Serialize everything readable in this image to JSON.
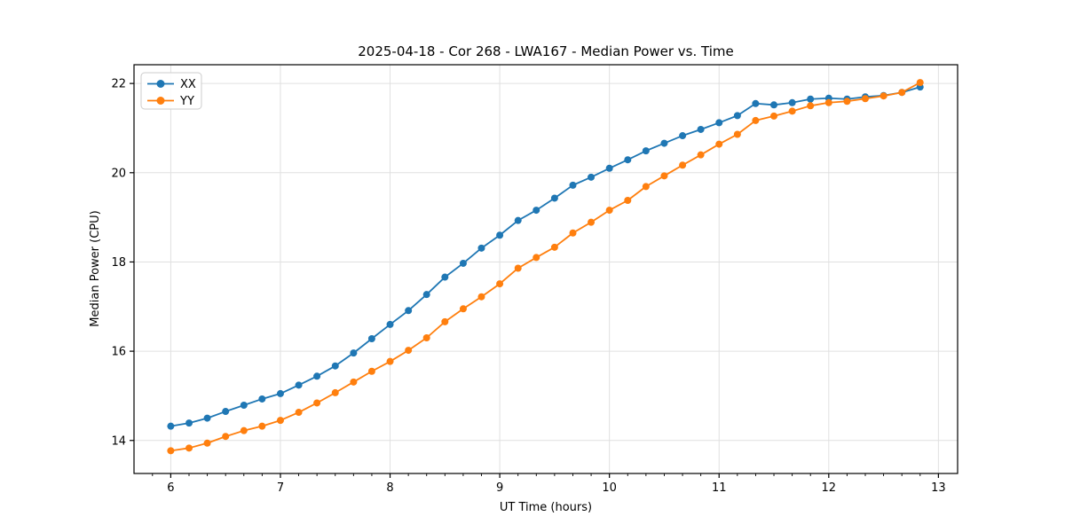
{
  "chart_data": {
    "type": "line",
    "title": "2025-04-18 - Cor 268 - LWA167 - Median Power vs. Time",
    "xlabel": "UT Time (hours)",
    "ylabel": "Median Power (CPU)",
    "xlim": [
      5.665,
      13.175
    ],
    "ylim": [
      13.26,
      22.42
    ],
    "x_major_ticks": [
      6,
      7,
      8,
      9,
      10,
      11,
      12,
      13
    ],
    "y_major_ticks": [
      14,
      16,
      18,
      20,
      22
    ],
    "x_minor_step_hours": 0.1667,
    "grid": true,
    "legend_position": "upper-left",
    "x": [
      6.0,
      6.167,
      6.333,
      6.5,
      6.667,
      6.833,
      7.0,
      7.167,
      7.333,
      7.5,
      7.667,
      7.833,
      8.0,
      8.167,
      8.333,
      8.5,
      8.667,
      8.833,
      9.0,
      9.167,
      9.333,
      9.5,
      9.667,
      9.833,
      10.0,
      10.167,
      10.333,
      10.5,
      10.667,
      10.833,
      11.0,
      11.167,
      11.333,
      11.5,
      11.667,
      11.833,
      12.0,
      12.167,
      12.333,
      12.5,
      12.667,
      12.833
    ],
    "series": [
      {
        "name": "XX",
        "color": "#1f77b4",
        "values": [
          14.32,
          14.39,
          14.5,
          14.65,
          14.79,
          14.93,
          15.05,
          15.24,
          15.44,
          15.67,
          15.96,
          16.28,
          16.6,
          16.91,
          17.27,
          17.66,
          17.97,
          18.31,
          18.6,
          18.93,
          19.16,
          19.43,
          19.72,
          19.9,
          20.1,
          20.29,
          20.49,
          20.66,
          20.83,
          20.97,
          21.12,
          21.28,
          21.55,
          21.52,
          21.57,
          21.65,
          21.67,
          21.65,
          21.7,
          21.73,
          21.8,
          21.92
        ]
      },
      {
        "name": "YY",
        "color": "#ff7f0e",
        "values": [
          13.77,
          13.83,
          13.94,
          14.09,
          14.22,
          14.32,
          14.45,
          14.63,
          14.84,
          15.07,
          15.31,
          15.55,
          15.77,
          16.02,
          16.3,
          16.66,
          16.95,
          17.22,
          17.51,
          17.86,
          18.1,
          18.33,
          18.65,
          18.89,
          19.16,
          19.38,
          19.69,
          19.93,
          20.17,
          20.4,
          20.64,
          20.86,
          21.17,
          21.27,
          21.38,
          21.5,
          21.57,
          21.6,
          21.66,
          21.72,
          21.8,
          22.02
        ]
      }
    ],
    "style": {
      "background_color": "#ffffff",
      "grid_color": "#e0e0e0",
      "spine_color": "#000000",
      "text_color": "#000000",
      "marker": "circle"
    }
  }
}
